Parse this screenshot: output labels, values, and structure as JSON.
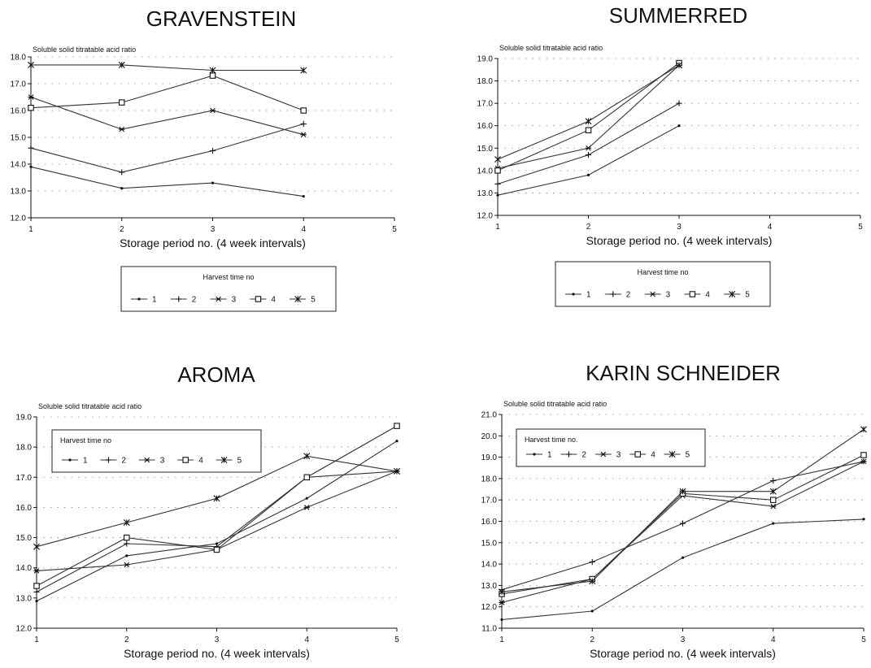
{
  "figure": {
    "harvest_legend_title": "Harvest time no",
    "harvest_legend_title_dot": "Harvest time no.",
    "harvest_numbers": [
      "1",
      "2",
      "3",
      "4",
      "5"
    ]
  },
  "chart_data": [
    {
      "type": "line",
      "title": "GRAVENSTEIN",
      "ylabel": "Soluble solid titratable acid ratio",
      "xlabel": "Storage period no. (4 week intervals)",
      "x_ticks": [
        "1",
        "2",
        "3",
        "4",
        "5"
      ],
      "y_ticks": [
        "12.0",
        "13.0",
        "14.0",
        "15.0",
        "16.0",
        "17.0",
        "18.0"
      ],
      "xlim": [
        1,
        5
      ],
      "ylim": [
        12,
        18
      ],
      "legend": "below",
      "legend_title": "Harvest time no",
      "series": [
        {
          "name": "1",
          "x": [
            1,
            2,
            3,
            4
          ],
          "y": [
            13.9,
            13.1,
            13.3,
            12.8
          ]
        },
        {
          "name": "2",
          "x": [
            1,
            2,
            3,
            4
          ],
          "y": [
            14.6,
            13.7,
            14.5,
            15.5
          ]
        },
        {
          "name": "3",
          "x": [
            1,
            2,
            3,
            4
          ],
          "y": [
            16.5,
            15.3,
            16.0,
            15.1
          ]
        },
        {
          "name": "4",
          "x": [
            1,
            2,
            3,
            4
          ],
          "y": [
            16.1,
            16.3,
            17.3,
            16.0
          ]
        },
        {
          "name": "5",
          "x": [
            1,
            2,
            3,
            4
          ],
          "y": [
            17.7,
            17.7,
            17.5,
            17.5
          ]
        }
      ]
    },
    {
      "type": "line",
      "title": "SUMMERRED",
      "ylabel": "Soluble solid titratable acid ratio",
      "xlabel": "Storage period no. (4 week intervals)",
      "x_ticks": [
        "1",
        "2",
        "3",
        "4",
        "5"
      ],
      "y_ticks": [
        "12.0",
        "13.0",
        "14.0",
        "15.0",
        "16.0",
        "17.0",
        "18.0",
        "19.0"
      ],
      "xlim": [
        1,
        5
      ],
      "ylim": [
        12,
        19
      ],
      "legend": "below",
      "legend_title": "Harvest time no",
      "series": [
        {
          "name": "1",
          "x": [
            1,
            2,
            3
          ],
          "y": [
            12.9,
            13.8,
            16.0
          ]
        },
        {
          "name": "2",
          "x": [
            1,
            2,
            3
          ],
          "y": [
            13.4,
            14.7,
            17.0
          ]
        },
        {
          "name": "3",
          "x": [
            1,
            2,
            3
          ],
          "y": [
            14.1,
            15.0,
            18.7
          ]
        },
        {
          "name": "4",
          "x": [
            1,
            2,
            3
          ],
          "y": [
            14.0,
            15.8,
            18.8
          ]
        },
        {
          "name": "5",
          "x": [
            1,
            2,
            3
          ],
          "y": [
            14.5,
            16.2,
            18.7
          ]
        }
      ]
    },
    {
      "type": "line",
      "title": "AROMA",
      "ylabel": "Soluble solid titratable acid ratio",
      "xlabel": "Storage period no. (4 week intervals)",
      "x_ticks": [
        "1",
        "2",
        "3",
        "4",
        "5"
      ],
      "y_ticks": [
        "12.0",
        "13.0",
        "14.0",
        "15.0",
        "16.0",
        "17.0",
        "18.0",
        "19.0"
      ],
      "xlim": [
        1,
        5
      ],
      "ylim": [
        12,
        19
      ],
      "legend": "top-left",
      "legend_title": "Harvest time no",
      "series": [
        {
          "name": "1",
          "x": [
            1,
            2,
            3,
            4,
            5
          ],
          "y": [
            12.9,
            14.4,
            14.8,
            16.3,
            18.2
          ]
        },
        {
          "name": "2",
          "x": [
            1,
            2,
            3,
            4,
            5
          ],
          "y": [
            13.2,
            14.8,
            14.7,
            17.0,
            17.2
          ]
        },
        {
          "name": "3",
          "x": [
            1,
            2,
            3,
            4,
            5
          ],
          "y": [
            13.9,
            14.1,
            14.6,
            16.0,
            17.2
          ]
        },
        {
          "name": "4",
          "x": [
            1,
            2,
            3,
            4,
            5
          ],
          "y": [
            13.4,
            15.0,
            14.6,
            17.0,
            18.7
          ]
        },
        {
          "name": "5",
          "x": [
            1,
            2,
            3,
            4,
            5
          ],
          "y": [
            14.7,
            15.5,
            16.3,
            17.7,
            17.2
          ]
        }
      ]
    },
    {
      "type": "line",
      "title": "KARIN SCHNEIDER",
      "ylabel": "Soluble solid titratable acid ratio",
      "xlabel": "Storage period no. (4 week intervals)",
      "x_ticks": [
        "1",
        "2",
        "3",
        "4",
        "5"
      ],
      "y_ticks": [
        "11.0",
        "12.0",
        "13.0",
        "14.0",
        "15.0",
        "16.0",
        "17.0",
        "18.0",
        "19.0",
        "20.0",
        "21.0"
      ],
      "xlim": [
        1,
        5
      ],
      "ylim": [
        11,
        21
      ],
      "legend": "top-left",
      "legend_title": "Harvest time no.",
      "series": [
        {
          "name": "1",
          "x": [
            1,
            2,
            3,
            4,
            5
          ],
          "y": [
            11.4,
            11.8,
            14.3,
            15.9,
            16.1
          ]
        },
        {
          "name": "2",
          "x": [
            1,
            2,
            3,
            4,
            5
          ],
          "y": [
            12.8,
            14.1,
            15.9,
            17.9,
            18.8
          ]
        },
        {
          "name": "3",
          "x": [
            1,
            2,
            3,
            4,
            5
          ],
          "y": [
            12.2,
            13.3,
            17.2,
            16.7,
            18.8
          ]
        },
        {
          "name": "4",
          "x": [
            1,
            2,
            3,
            4,
            5
          ],
          "y": [
            12.6,
            13.3,
            17.3,
            17.0,
            19.1
          ]
        },
        {
          "name": "5",
          "x": [
            1,
            2,
            3,
            4,
            5
          ],
          "y": [
            12.7,
            13.2,
            17.4,
            17.4,
            20.3
          ]
        }
      ]
    }
  ]
}
